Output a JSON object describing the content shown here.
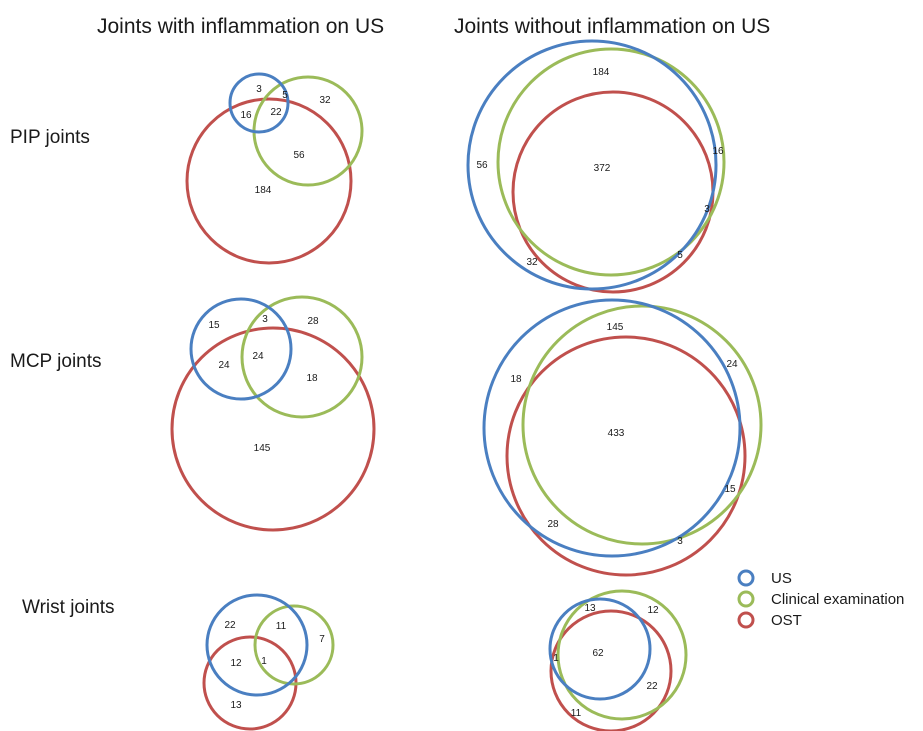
{
  "colors": {
    "us": "#4a7fc1",
    "clinical": "#9bbb59",
    "ost": "#c0504d"
  },
  "columns": {
    "with": "Joints with inflammation on US",
    "without": "Joints without inflammation on US"
  },
  "rows": {
    "pip": "PIP joints",
    "mcp": "MCP joints",
    "wrist": "Wrist joints"
  },
  "legend": [
    {
      "key": "us",
      "label": "US"
    },
    {
      "key": "clinical",
      "label": "Clinical examination"
    },
    {
      "key": "ost",
      "label": "OST"
    }
  ],
  "venn": {
    "pip_with": [
      "3",
      "5",
      "32",
      "16",
      "22",
      "56",
      "184"
    ],
    "pip_without": [
      "184",
      "56",
      "372",
      "16",
      "3",
      "5",
      "32"
    ],
    "mcp_with": [
      "15",
      "3",
      "28",
      "24",
      "24",
      "18",
      "145"
    ],
    "mcp_without": [
      "145",
      "18",
      "24",
      "433",
      "15",
      "28",
      "3"
    ],
    "wrist_with": [
      "22",
      "11",
      "7",
      "12",
      "1",
      "13"
    ],
    "wrist_without": [
      "13",
      "12",
      "1",
      "62",
      "22",
      "11"
    ]
  }
}
